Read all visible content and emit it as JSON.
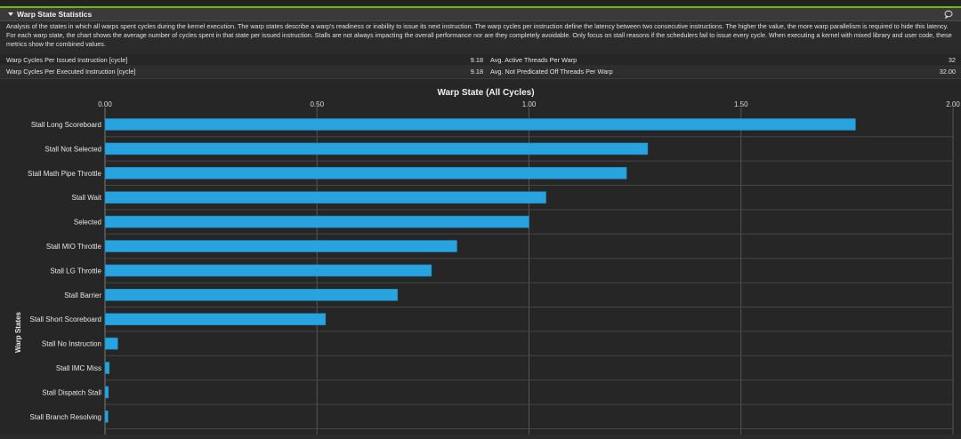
{
  "section": {
    "title": "Warp State Statistics",
    "description": "Analysis of the states in which all warps spent cycles during the kernel execution. The warp states describe a warp's readiness or inability to issue its next instruction. The warp cycles per instruction define the latency between two consecutive instructions. The higher the value, the more warp parallelism is required to hide this latency. For each warp state, the chart shows the average number of cycles spent in that state per issued instruction. Stalls are not always impacting the overall performance nor are they completely avoidable. Only focus on stall reasons if the schedulers fail to issue every cycle. When executing a kernel with mixed library and user code, these metrics show the combined values."
  },
  "metrics": [
    {
      "name": "Warp Cycles Per Issued Instruction [cycle]",
      "value": "9.18",
      "name2": "Avg. Active Threads Per Warp",
      "value2": "32"
    },
    {
      "name": "Warp Cycles Per Executed Instruction [cycle]",
      "value": "9.18",
      "name2": "Avg. Not Predicated Off Threads Per Warp",
      "value2": "32.00"
    }
  ],
  "colors": {
    "bar": "#27a3df",
    "bar_edge": "#1f86b8",
    "accent": "#76b900"
  },
  "icons": {
    "collapse": "caret-down-icon",
    "comment": "comment-icon"
  },
  "chart_data": {
    "type": "bar",
    "orientation": "horizontal",
    "title": "Warp State (All Cycles)",
    "ylabel": "Warp States",
    "xlabel": "",
    "xlim": [
      0,
      2
    ],
    "x_ticks": [
      "0.00",
      "0.50",
      "1.00",
      "1.50",
      "2.00"
    ],
    "x_tick_values": [
      0,
      0.5,
      1,
      1.5,
      2
    ],
    "x_axis_position": "top",
    "grid": true,
    "categories": [
      "Stall Long Scoreboard",
      "Stall Not Selected",
      "Stall Math Pipe Throttle",
      "Stall Wait",
      "Selected",
      "Stall MIO Throttle",
      "Stall LG Throttle",
      "Stall Barrier",
      "Stall Short Scoreboard",
      "Stall No Instruction",
      "Stall IMC Miss",
      "Stall Dispatch Stall",
      "Stall Branch Resolving"
    ],
    "values": [
      1.77,
      1.28,
      1.23,
      1.04,
      1.0,
      0.83,
      0.77,
      0.69,
      0.52,
      0.03,
      0.01,
      0.008,
      0.007
    ]
  }
}
